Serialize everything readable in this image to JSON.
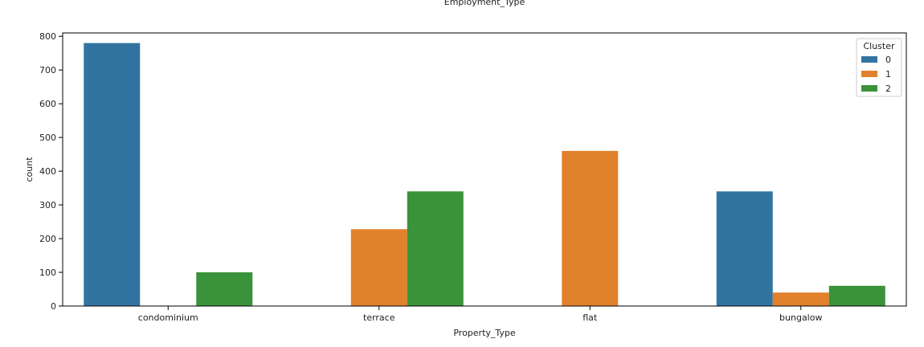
{
  "chart_data": {
    "type": "bar",
    "title": "Employment_Type",
    "xlabel": "Property_Type",
    "ylabel": "count",
    "categories": [
      "condominium",
      "terrace",
      "flat",
      "bungalow"
    ],
    "ylim": [
      0,
      810
    ],
    "yticks": [
      0,
      100,
      200,
      300,
      400,
      500,
      600,
      700,
      800
    ],
    "grid": false,
    "legend": {
      "title": "Cluster",
      "position": "top-right"
    },
    "series": [
      {
        "name": "0",
        "color": "#3274a1",
        "values": [
          780,
          0,
          0,
          340
        ]
      },
      {
        "name": "1",
        "color": "#e1812c",
        "values": [
          0,
          228,
          460,
          40
        ]
      },
      {
        "name": "2",
        "color": "#3a923a",
        "values": [
          100,
          340,
          0,
          60
        ]
      }
    ]
  }
}
